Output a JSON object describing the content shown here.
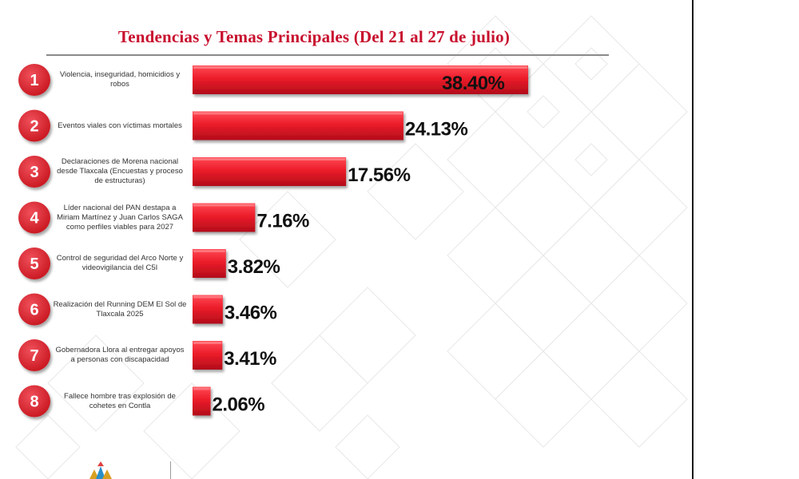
{
  "title": "Tendencias y Temas Principales (Del 21 al 27 de julio)",
  "colors": {
    "accent": "#c8102e",
    "bar_top": "#f4303e",
    "bar_bottom": "#c2101d",
    "text_dark": "#111111"
  },
  "chart_data": {
    "type": "bar",
    "orientation": "horizontal",
    "title": "Tendencias y Temas Principales (Del 21 al 27 de julio)",
    "categories": [
      "Violencia, inseguridad, homicidios y robos",
      "Eventos viales con víctimas mortales",
      "Declaraciones de Morena nacional desde Tlaxcala (Encuestas y proceso de estructuras)",
      "Líder nacional del PAN destapa a Miriam Martínez y Juan Carlos SAGA como perfiles viables para 2027",
      "Control de seguridad del Arco Norte y videovigilancia del C5I",
      "Realización del Running DEM El Sol de Tlaxcala 2025",
      "Gobernadora Llora al entregar apoyos a personas con discapacidad",
      "Fallece hombre tras explosión de cohetes en Contla"
    ],
    "ranks": [
      "1",
      "2",
      "3",
      "4",
      "5",
      "6",
      "7",
      "8"
    ],
    "values": [
      38.4,
      24.13,
      17.56,
      7.16,
      3.82,
      3.46,
      3.41,
      2.06
    ],
    "value_labels": [
      "38.40%",
      "24.13%",
      "17.56%",
      "7.16%",
      "3.82%",
      "3.46%",
      "3.41%",
      "2.06%"
    ],
    "xlim": [
      0,
      38.4
    ],
    "grid": false,
    "legend": "none"
  }
}
